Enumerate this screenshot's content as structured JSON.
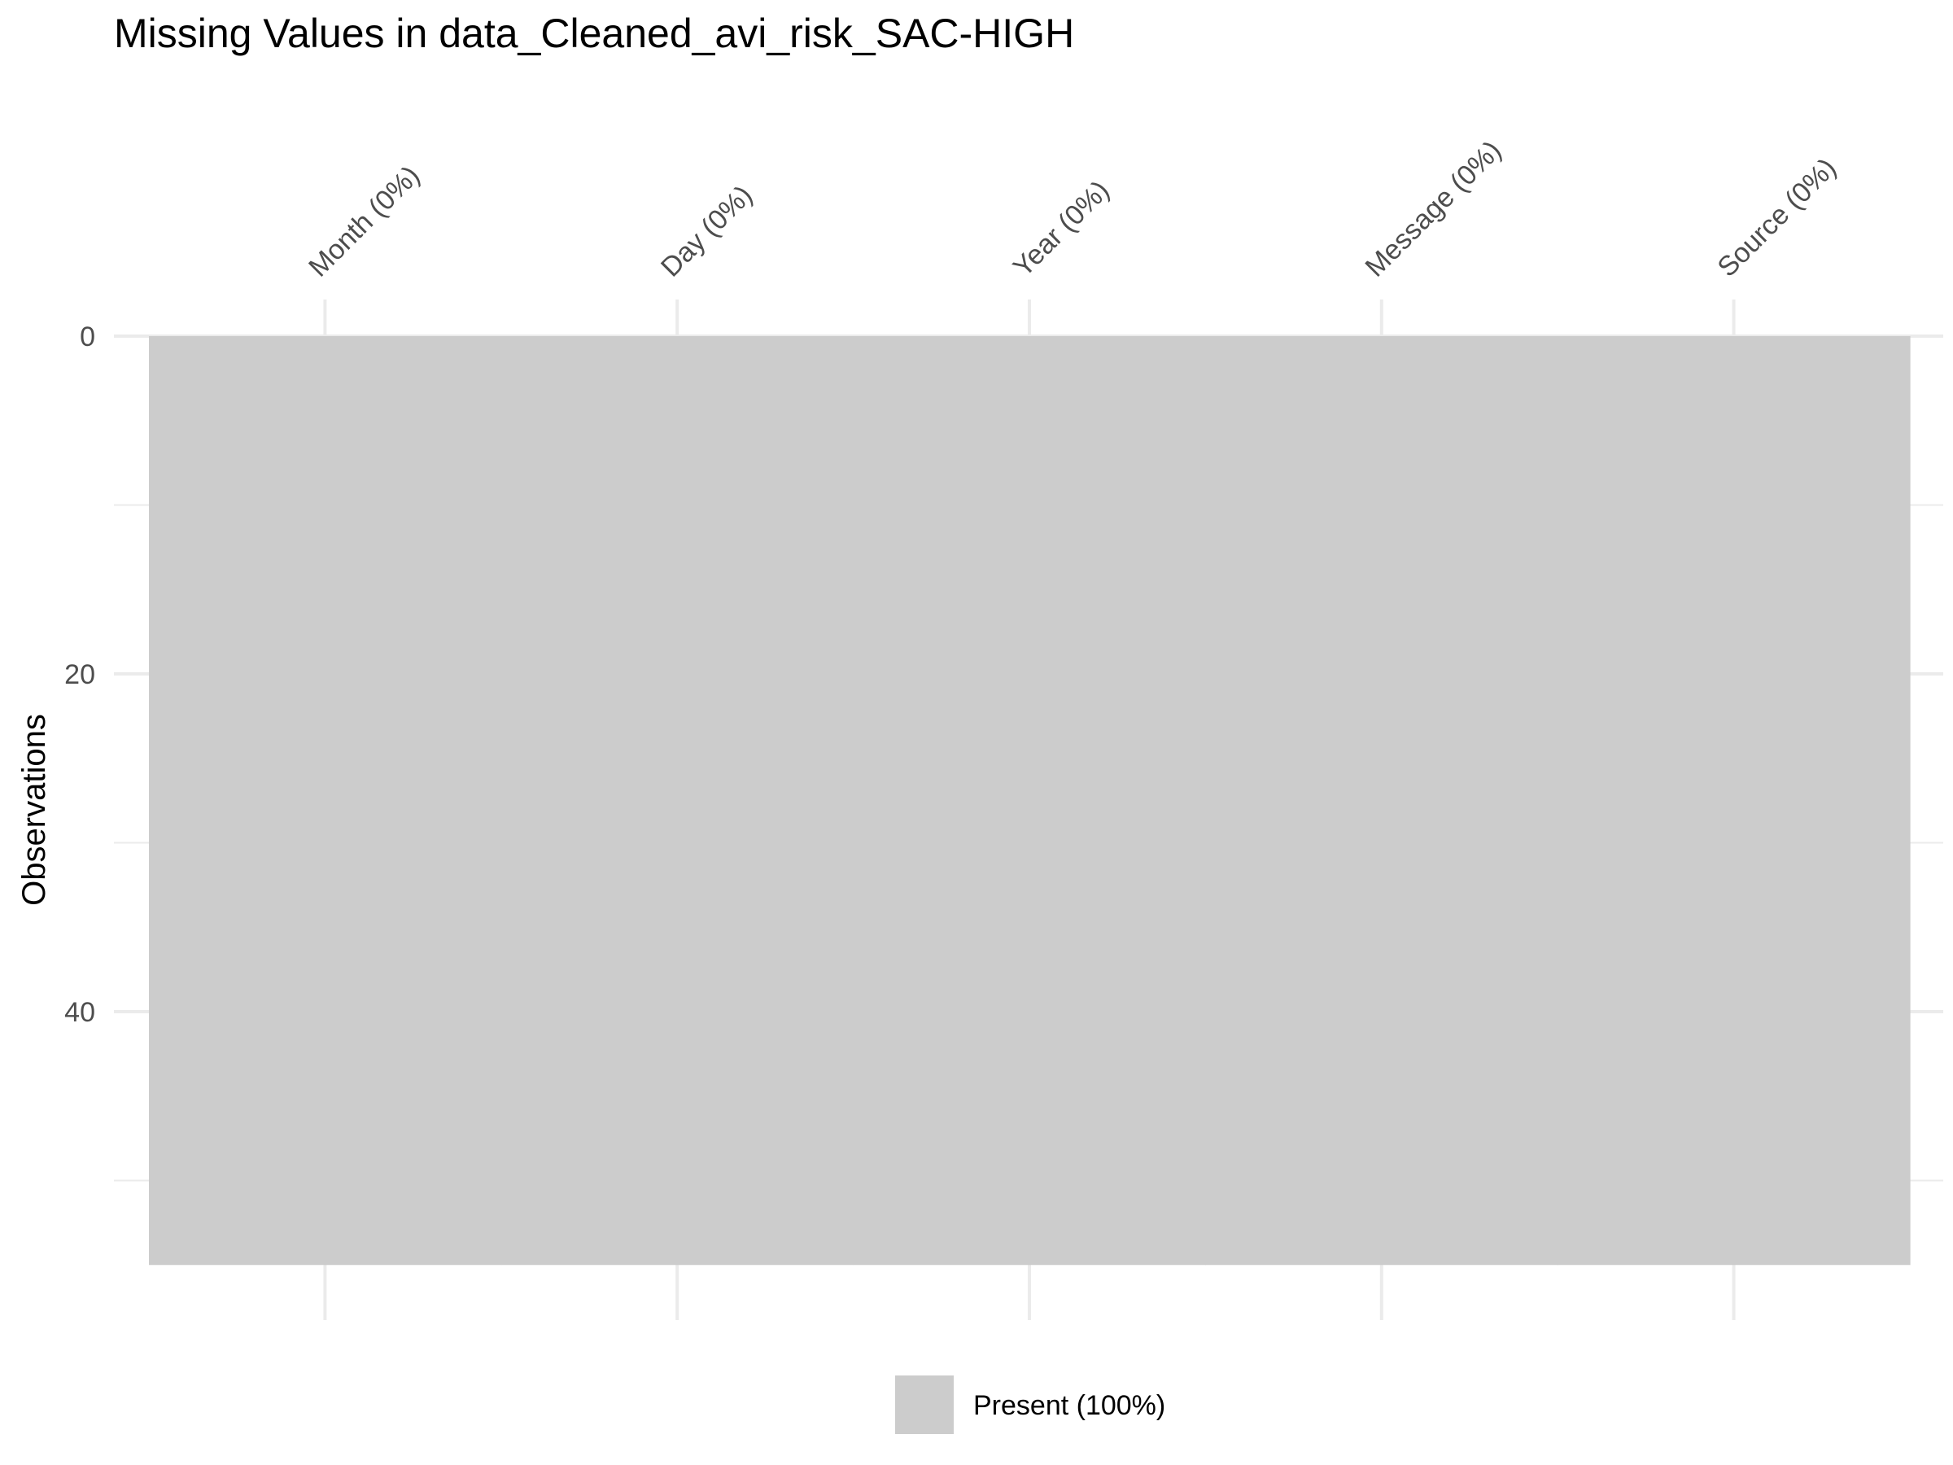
{
  "chart_data": {
    "type": "heatmap",
    "title": "Missing Values in data_Cleaned_avi_risk_SAC-HIGH",
    "xlabel": "",
    "ylabel": "Observations",
    "columns": [
      "Month (0%)",
      "Day (0%)",
      "Year (0%)",
      "Message (0%)",
      "Source (0%)"
    ],
    "column_missing_pct": [
      0,
      0,
      0,
      0,
      0
    ],
    "observations": 55,
    "ylim": [
      0,
      55
    ],
    "yticks": [
      0,
      20,
      40
    ],
    "y_reversed": true,
    "grid": true,
    "cells": [
      {
        "column": "Month (0%)",
        "status": "Present",
        "from": 0,
        "to": 55
      },
      {
        "column": "Day (0%)",
        "status": "Present",
        "from": 0,
        "to": 55
      },
      {
        "column": "Year (0%)",
        "status": "Present",
        "from": 0,
        "to": 55
      },
      {
        "column": "Message (0%)",
        "status": "Present",
        "from": 0,
        "to": 55
      },
      {
        "column": "Source (0%)",
        "status": "Present",
        "from": 0,
        "to": 55
      }
    ],
    "legend": [
      {
        "label": "Present (100%)",
        "color": "#cccccc"
      }
    ],
    "legend_position": "bottom",
    "colors": {
      "present": "#cccccc",
      "grid": "#ebebeb",
      "axis_text": "#4d4d4d",
      "title": "#000000"
    }
  }
}
